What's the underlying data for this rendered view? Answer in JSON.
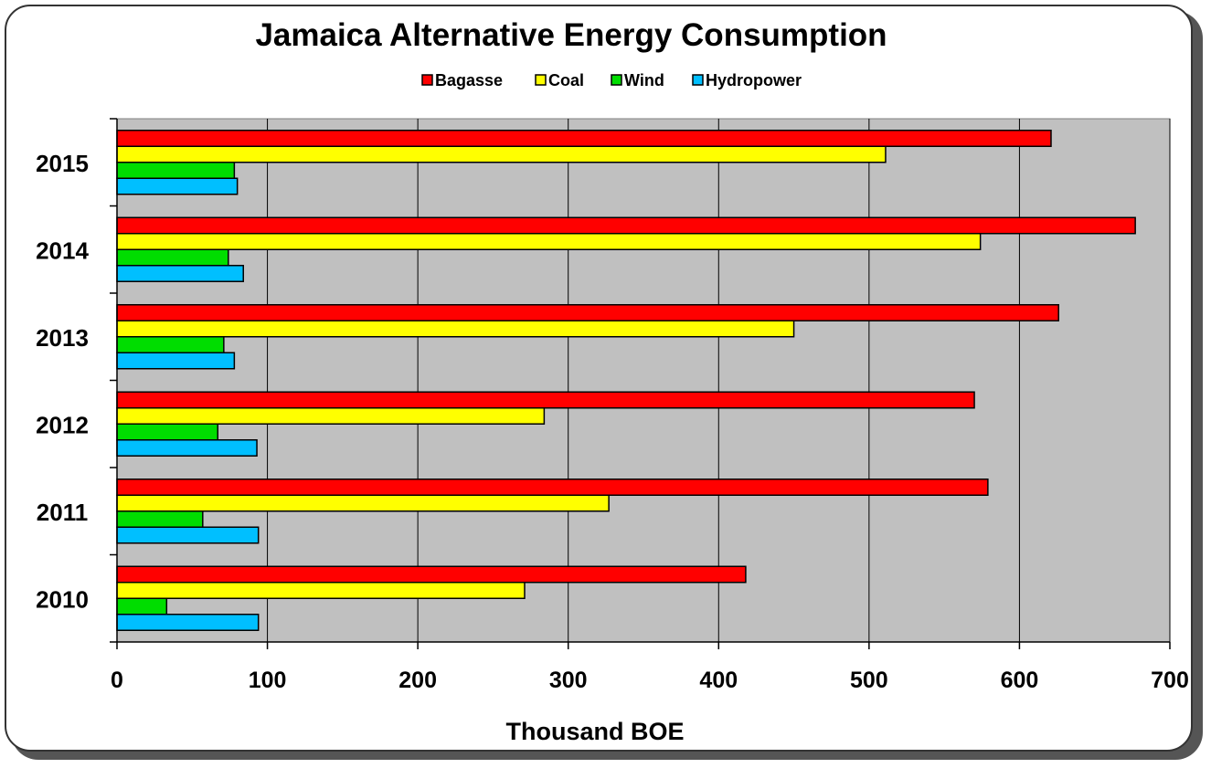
{
  "chart_data": {
    "type": "bar",
    "orientation": "horizontal",
    "title": "Jamaica Alternative Energy Consumption",
    "xlabel": "Thousand BOE",
    "ylabel": "",
    "xlim": [
      0,
      700
    ],
    "xticks": [
      "0",
      "100",
      "200",
      "300",
      "400",
      "500",
      "600",
      "700"
    ],
    "categories": [
      "2010",
      "2011",
      "2012",
      "2013",
      "2014",
      "2015"
    ],
    "series": [
      {
        "name": "Bagasse",
        "color": "#ff0000",
        "values": [
          418,
          579,
          570,
          626,
          677,
          621
        ]
      },
      {
        "name": "Coal",
        "color": "#ffff00",
        "values": [
          271,
          327,
          284,
          450,
          574,
          511
        ]
      },
      {
        "name": "Wind",
        "color": "#00dd00",
        "values": [
          33,
          57,
          67,
          71,
          74,
          78
        ]
      },
      {
        "name": "Hydropower",
        "color": "#00bfff",
        "values": [
          94,
          94,
          93,
          78,
          84,
          80
        ]
      }
    ],
    "grid": true,
    "plot_background": "#c0c0c0",
    "legend_position": "top"
  }
}
